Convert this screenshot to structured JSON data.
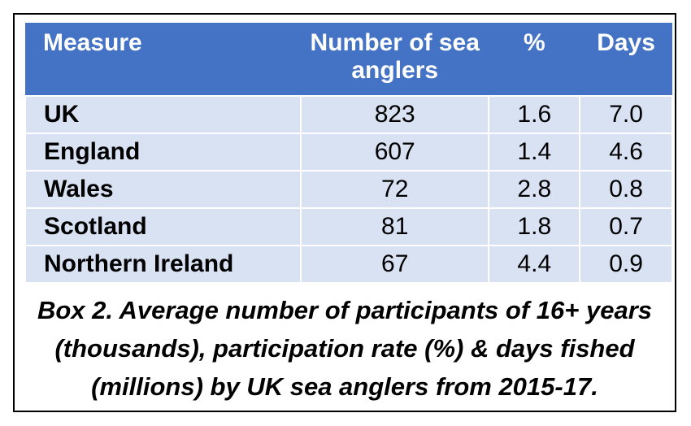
{
  "chart_data": {
    "type": "table",
    "columns": [
      "Measure",
      "Number of sea anglers",
      "%",
      "Days"
    ],
    "rows": [
      {
        "measure": "UK",
        "number": "823",
        "pct": "1.6",
        "days": "7.0"
      },
      {
        "measure": "England",
        "number": "607",
        "pct": "1.4",
        "days": "4.6"
      },
      {
        "measure": "Wales",
        "number": "72",
        "pct": "2.8",
        "days": "0.8"
      },
      {
        "measure": "Scotland",
        "number": "81",
        "pct": "1.8",
        "days": "0.7"
      },
      {
        "measure": "Northern Ireland",
        "number": "67",
        "pct": "4.4",
        "days": "0.9"
      }
    ],
    "caption_lines": [
      "Box 2. Average number of participants of 16+ years",
      "(thousands), participation rate (%) & days fished",
      "(millions) by UK sea anglers from 2015-17."
    ]
  },
  "colors": {
    "header_bg": "#4472c4",
    "row_bg": "#d9e2f3",
    "header_text": "#ffffff"
  }
}
